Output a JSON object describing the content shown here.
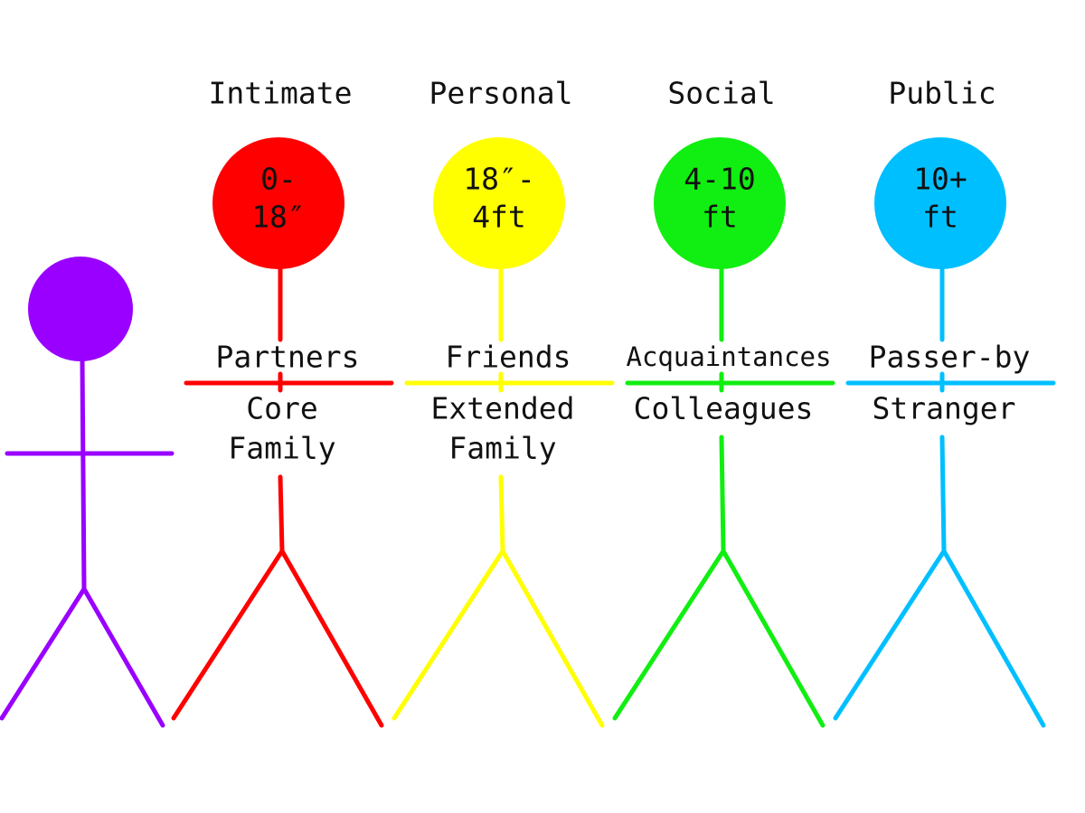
{
  "zones": [
    {
      "name": "Intimate",
      "distance": [
        "0-",
        "18″"
      ],
      "upper": "Partners",
      "lower": [
        "Core",
        "Family"
      ],
      "color": "#ff0000"
    },
    {
      "name": "Personal",
      "distance": [
        "18″-",
        "4ft"
      ],
      "upper": "Friends",
      "lower": [
        "Extended",
        "Family"
      ],
      "color": "#ffff00"
    },
    {
      "name": "Social",
      "distance": [
        "4-10",
        "ft"
      ],
      "upper": "Acquaintances",
      "lower": [
        "Colleagues"
      ],
      "color": "#11ee11"
    },
    {
      "name": "Public",
      "distance": [
        "10+",
        "ft"
      ],
      "upper": "Passer-by",
      "lower": [
        "Stranger"
      ],
      "color": "#00bfff"
    }
  ],
  "self_color": "#9900ff"
}
